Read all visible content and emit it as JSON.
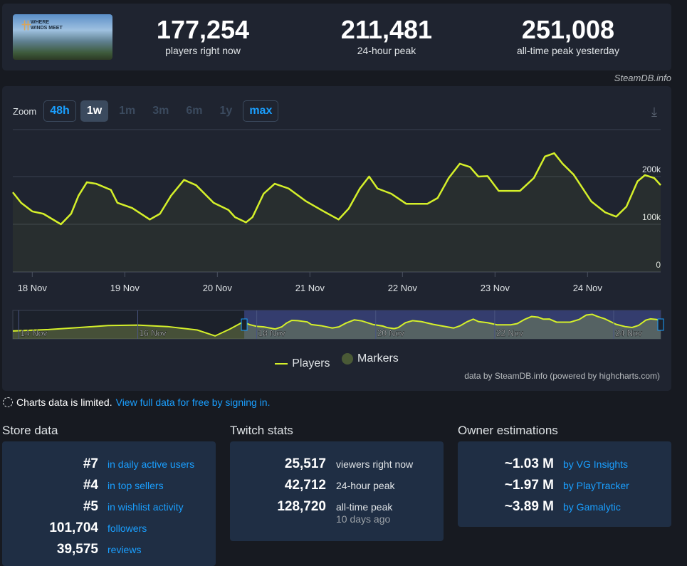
{
  "header": {
    "game_logo": "WHERE WINDS MEET",
    "stats": [
      {
        "value": "177,254",
        "label": "players right now"
      },
      {
        "value": "211,481",
        "label": "24-hour peak"
      },
      {
        "value": "251,008",
        "label": "all-time peak yesterday"
      }
    ],
    "credit": "SteamDB.info"
  },
  "zoom": {
    "label": "Zoom",
    "buttons": [
      "48h",
      "1w",
      "1m",
      "3m",
      "6m",
      "1y",
      "max"
    ],
    "selected": "1w",
    "download_icon": "download-icon"
  },
  "chart_data": {
    "type": "area",
    "title": "",
    "xlabel": "",
    "ylabel": "Players",
    "ylim": [
      0,
      300000
    ],
    "x_tick_labels": [
      "18 Nov",
      "19 Nov",
      "20 Nov",
      "21 Nov",
      "22 Nov",
      "23 Nov",
      "24 Nov"
    ],
    "y_tick_labels": [
      "0",
      "100k",
      "200k"
    ],
    "grid": true,
    "series": [
      {
        "name": "Players",
        "color": "#d5f02a",
        "x": [
          17.79,
          17.88,
          18.0,
          18.12,
          18.31,
          18.42,
          18.5,
          18.59,
          18.69,
          18.85,
          18.92,
          19.08,
          19.27,
          19.38,
          19.5,
          19.64,
          19.77,
          19.96,
          20.12,
          20.19,
          20.31,
          20.38,
          20.5,
          20.62,
          20.77,
          20.96,
          21.15,
          21.31,
          21.42,
          21.54,
          21.64,
          21.73,
          21.88,
          22.04,
          22.27,
          22.38,
          22.5,
          22.62,
          22.73,
          22.82,
          22.92,
          23.04,
          23.27,
          23.42,
          23.54,
          23.64,
          23.73,
          23.85,
          24.04,
          24.19,
          24.31,
          24.42,
          24.54,
          24.62,
          24.72,
          24.79
        ],
        "y": [
          167000,
          145000,
          127000,
          122000,
          100000,
          122000,
          160000,
          188000,
          185000,
          172000,
          145000,
          134000,
          110000,
          122000,
          160000,
          193000,
          182000,
          145000,
          130000,
          115000,
          104000,
          115000,
          164000,
          185000,
          175000,
          148000,
          127000,
          110000,
          133000,
          175000,
          200000,
          175000,
          164000,
          143000,
          143000,
          155000,
          197000,
          227000,
          220000,
          200000,
          201000,
          170000,
          170000,
          197000,
          242000,
          249000,
          227000,
          204000,
          148000,
          125000,
          116000,
          137000,
          190000,
          203000,
          197000,
          182000
        ]
      }
    ],
    "navigator": {
      "x_tick_labels": [
        "14 Nov",
        "16 Nov",
        "18 Nov",
        "20 Nov",
        "22 Nov",
        "24 Nov"
      ],
      "pre_x": [
        13.9,
        14.5,
        15.0,
        15.5,
        16.0,
        16.5,
        17.0,
        17.3,
        17.55,
        17.75
      ],
      "pre_y": [
        80000,
        95000,
        115000,
        135000,
        140000,
        125000,
        90000,
        30000,
        100000,
        165000
      ]
    },
    "legend": [
      {
        "label": "Players",
        "color": "#d5f02a"
      },
      {
        "label": "Markers",
        "color": "#4a5a36"
      }
    ],
    "source": "data by SteamDB.info (powered by highcharts.com)"
  },
  "notice": {
    "text": "Charts data is limited.",
    "link": "View full data for free by signing in."
  },
  "store": {
    "title": "Store data",
    "rows": [
      {
        "v": "#7",
        "l": "in daily active users"
      },
      {
        "v": "#4",
        "l": "in top sellers"
      },
      {
        "v": "#5",
        "l": "in wishlist activity"
      },
      {
        "v": "101,704",
        "l": "followers"
      },
      {
        "v": "39,575",
        "l": "reviews"
      }
    ]
  },
  "twitch": {
    "title": "Twitch stats",
    "rows": [
      {
        "v": "25,517",
        "l": "viewers right now"
      },
      {
        "v": "42,712",
        "l": "24-hour peak"
      },
      {
        "v": "128,720",
        "l": "all-time peak"
      }
    ],
    "ago": "10 days ago"
  },
  "owners": {
    "title": "Owner estimations",
    "rows": [
      {
        "v": "~1.03 M",
        "l": "by VG Insights"
      },
      {
        "v": "~1.97 M",
        "l": "by PlayTracker"
      },
      {
        "v": "~3.89 M",
        "l": "by Gamalytic"
      }
    ]
  }
}
